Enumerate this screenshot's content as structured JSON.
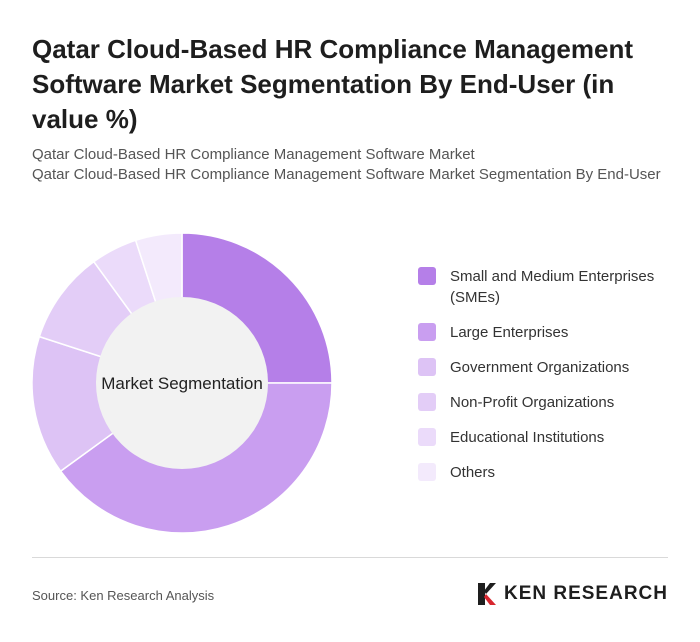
{
  "title": "Qatar Cloud-Based HR Compliance Management Software Market Segmentation By End-User (in value %)",
  "subtitle_lines": [
    "Qatar Cloud-Based HR Compliance Management Software Market",
    "Qatar Cloud-Based HR Compliance Management Software Market Segmentation By End-User"
  ],
  "source": "Source: Ken Research Analysis",
  "logo_text": "KEN RESEARCH",
  "chart_data": {
    "type": "pie",
    "center_label": "Market Segmentation",
    "legend_position": "right",
    "categories": [
      "Small and Medium Enterprises (SMEs)",
      "Large Enterprises",
      "Government Organizations",
      "Non-Profit Organizations",
      "Educational Institutions",
      "Others"
    ],
    "values": [
      25,
      40,
      15,
      10,
      5,
      5
    ],
    "colors": [
      "#b57fe8",
      "#c99ef0",
      "#ddc3f5",
      "#e3cdf7",
      "#ebdbfa",
      "#f3eafc"
    ]
  }
}
